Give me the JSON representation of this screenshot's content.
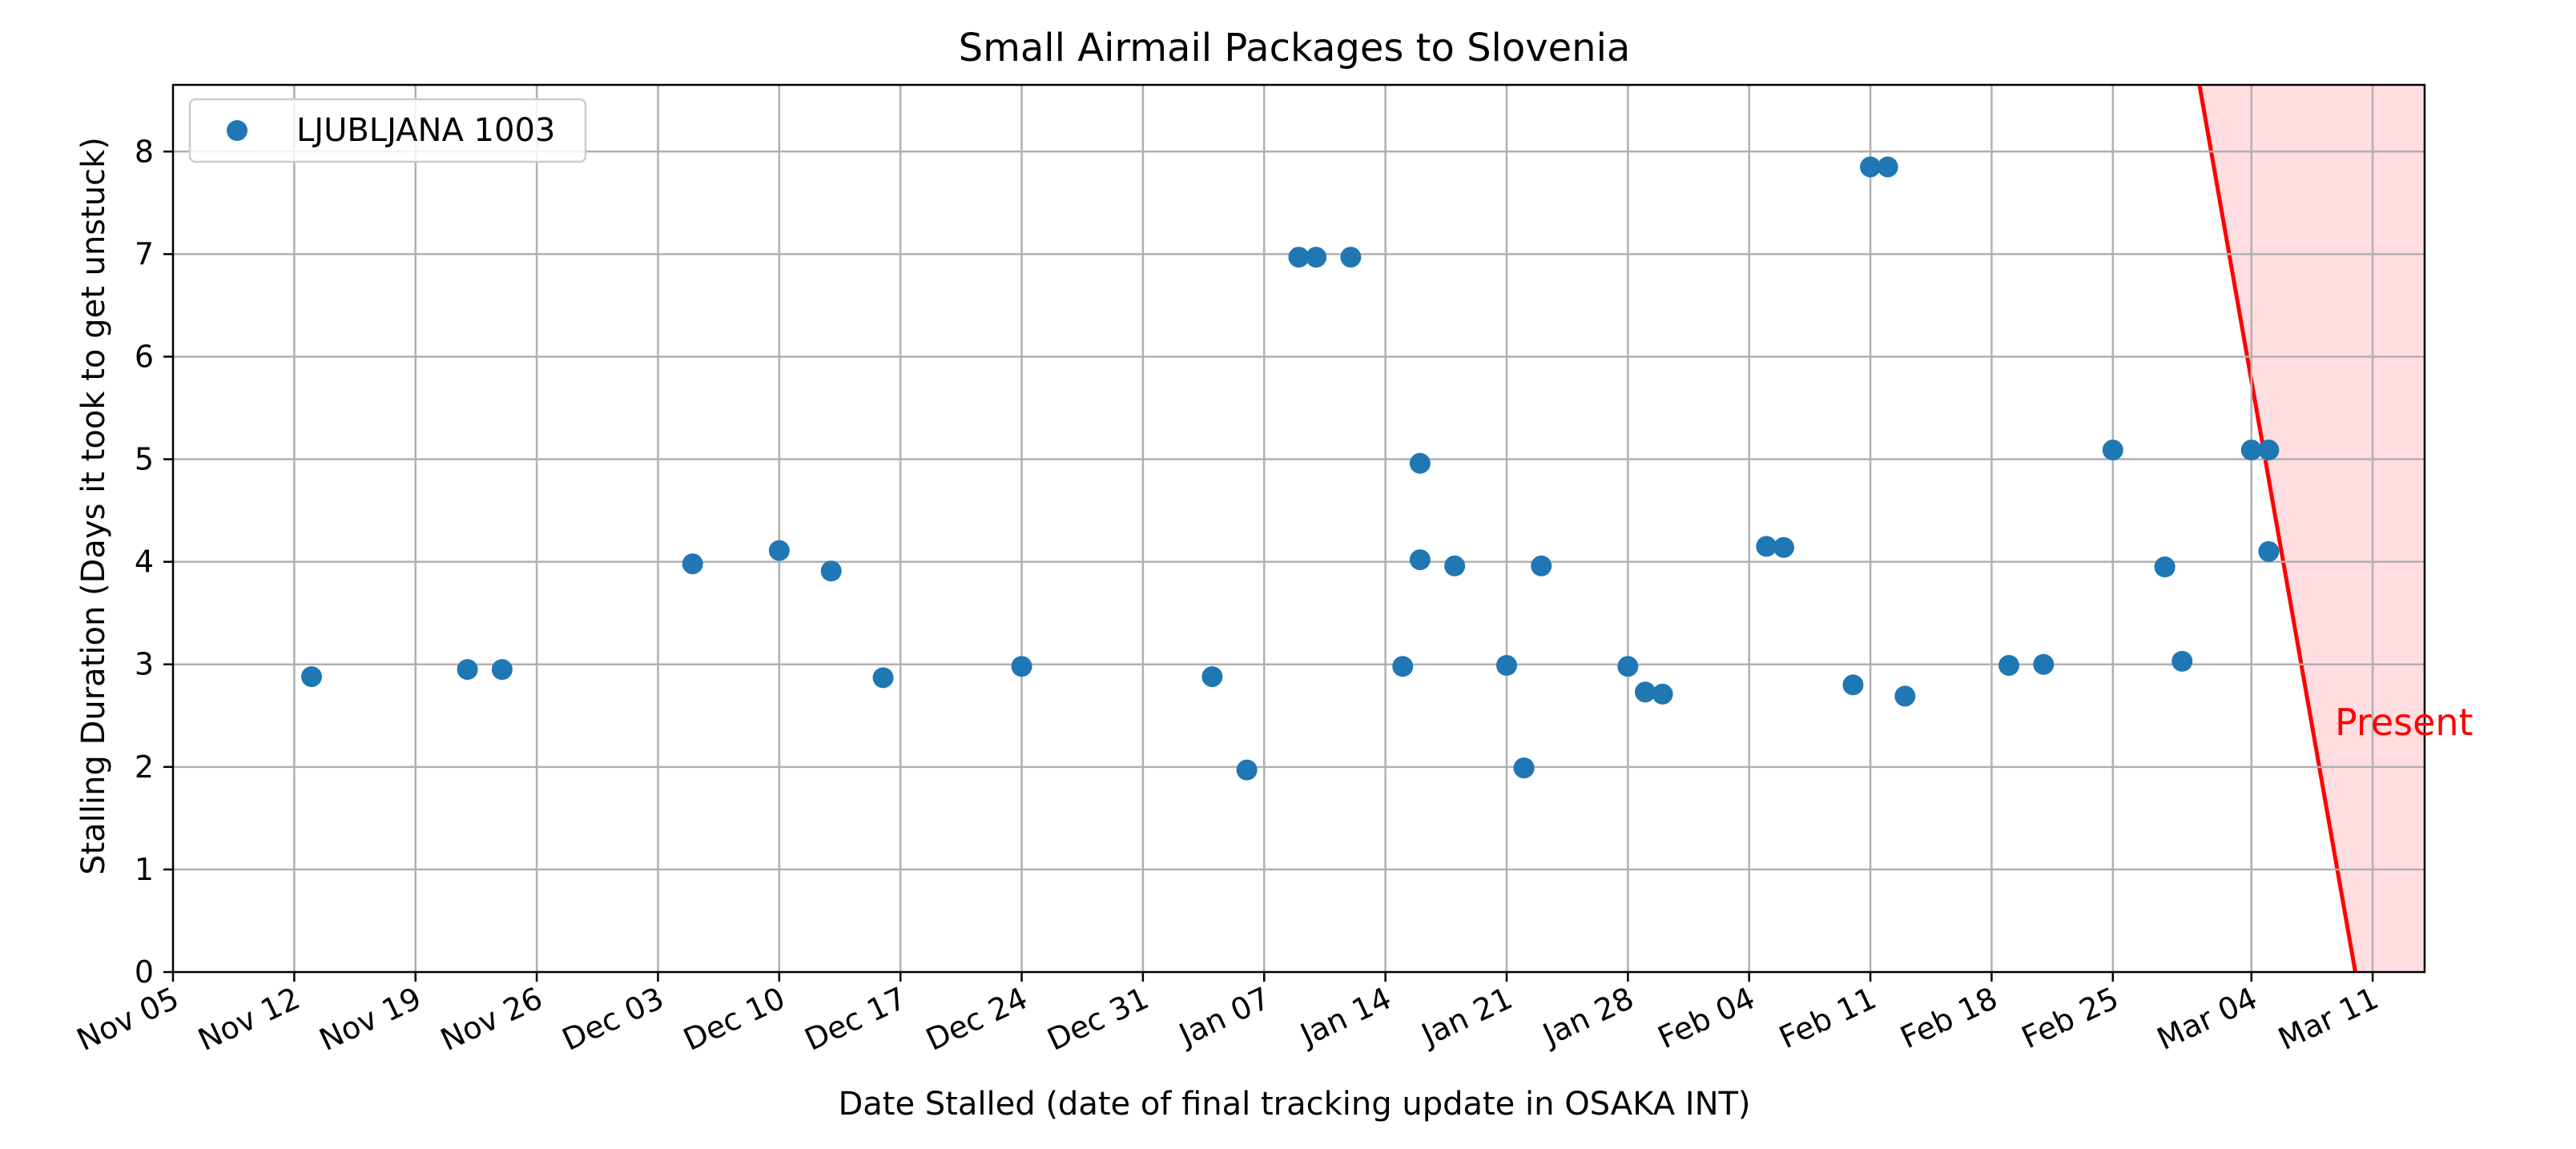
{
  "chart_data": {
    "type": "scatter",
    "title": "Small Airmail Packages to Slovenia",
    "xlabel": "Date Stalled (date of final tracking update in OSAKA INT)",
    "ylabel": "Stalling Duration (Days it took to get unstuck)",
    "x_range": [
      "2023-11-05",
      "2024-03-14"
    ],
    "xlim": [
      0,
      130
    ],
    "ylim": [
      0,
      8.65
    ],
    "y_ticks": [
      0,
      1,
      2,
      3,
      4,
      5,
      6,
      7,
      8
    ],
    "x_ticks": [
      {
        "date": "2023-11-05",
        "label": "Nov 05"
      },
      {
        "date": "2023-11-12",
        "label": "Nov 12"
      },
      {
        "date": "2023-11-19",
        "label": "Nov 19"
      },
      {
        "date": "2023-11-26",
        "label": "Nov 26"
      },
      {
        "date": "2023-12-03",
        "label": "Dec 03"
      },
      {
        "date": "2023-12-10",
        "label": "Dec 10"
      },
      {
        "date": "2023-12-17",
        "label": "Dec 17"
      },
      {
        "date": "2023-12-24",
        "label": "Dec 24"
      },
      {
        "date": "2023-12-31",
        "label": "Dec 31"
      },
      {
        "date": "2024-01-07",
        "label": "Jan 07"
      },
      {
        "date": "2024-01-14",
        "label": "Jan 14"
      },
      {
        "date": "2024-01-21",
        "label": "Jan 21"
      },
      {
        "date": "2024-01-28",
        "label": "Jan 28"
      },
      {
        "date": "2024-02-04",
        "label": "Feb 04"
      },
      {
        "date": "2024-02-11",
        "label": "Feb 11"
      },
      {
        "date": "2024-02-18",
        "label": "Feb 18"
      },
      {
        "date": "2024-02-25",
        "label": "Feb 25"
      },
      {
        "date": "2024-03-04",
        "label": "Mar 04"
      },
      {
        "date": "2024-03-11",
        "label": "Mar 11"
      }
    ],
    "grid": true,
    "legend_position": "upper left",
    "series": [
      {
        "name": "LJUBLJANA 1003",
        "color": "#1f77b4",
        "points": [
          {
            "x": "2023-11-13",
            "y": 2.88
          },
          {
            "x": "2023-11-22",
            "y": 2.95
          },
          {
            "x": "2023-11-24",
            "y": 2.95
          },
          {
            "x": "2023-12-05",
            "y": 3.98
          },
          {
            "x": "2023-12-10",
            "y": 4.11
          },
          {
            "x": "2023-12-13",
            "y": 3.91
          },
          {
            "x": "2023-12-16",
            "y": 2.87
          },
          {
            "x": "2023-12-24",
            "y": 2.98
          },
          {
            "x": "2024-01-04",
            "y": 2.88
          },
          {
            "x": "2024-01-06",
            "y": 1.97
          },
          {
            "x": "2024-01-09",
            "y": 6.97
          },
          {
            "x": "2024-01-10",
            "y": 6.97
          },
          {
            "x": "2024-01-12",
            "y": 6.97
          },
          {
            "x": "2024-01-15",
            "y": 2.98
          },
          {
            "x": "2024-01-16",
            "y": 4.02
          },
          {
            "x": "2024-01-16",
            "y": 4.96
          },
          {
            "x": "2024-01-18",
            "y": 3.96
          },
          {
            "x": "2024-01-21",
            "y": 2.99
          },
          {
            "x": "2024-01-22",
            "y": 1.99
          },
          {
            "x": "2024-01-22",
            "y": 1.99
          },
          {
            "x": "2024-01-23",
            "y": 3.96
          },
          {
            "x": "2024-01-28",
            "y": 2.98
          },
          {
            "x": "2024-01-29",
            "y": 2.73
          },
          {
            "x": "2024-01-30",
            "y": 2.71
          },
          {
            "x": "2024-02-05",
            "y": 4.15
          },
          {
            "x": "2024-02-06",
            "y": 4.14
          },
          {
            "x": "2024-02-10",
            "y": 2.8
          },
          {
            "x": "2024-02-11",
            "y": 7.85
          },
          {
            "x": "2024-02-12",
            "y": 7.85
          },
          {
            "x": "2024-02-13",
            "y": 2.69
          },
          {
            "x": "2024-02-19",
            "y": 2.99
          },
          {
            "x": "2024-02-21",
            "y": 3.0
          },
          {
            "x": "2024-02-25",
            "y": 5.09
          },
          {
            "x": "2024-02-28",
            "y": 3.95
          },
          {
            "x": "2024-02-28",
            "y": 3.95
          },
          {
            "x": "2024-02-29",
            "y": 3.03
          },
          {
            "x": "2024-03-04",
            "y": 5.09
          },
          {
            "x": "2024-03-05",
            "y": 5.09
          },
          {
            "x": "2024-03-05",
            "y": 4.1
          }
        ]
      }
    ],
    "annotations": [
      {
        "text": "Present",
        "color": "#ff0000"
      }
    ],
    "present_marker": {
      "color": "#ff0000",
      "shade_color": "#ffdde1",
      "line": [
        {
          "x": "2024-03-01",
          "y": 8.65
        },
        {
          "x": "2024-03-10",
          "y": 0
        }
      ]
    }
  }
}
